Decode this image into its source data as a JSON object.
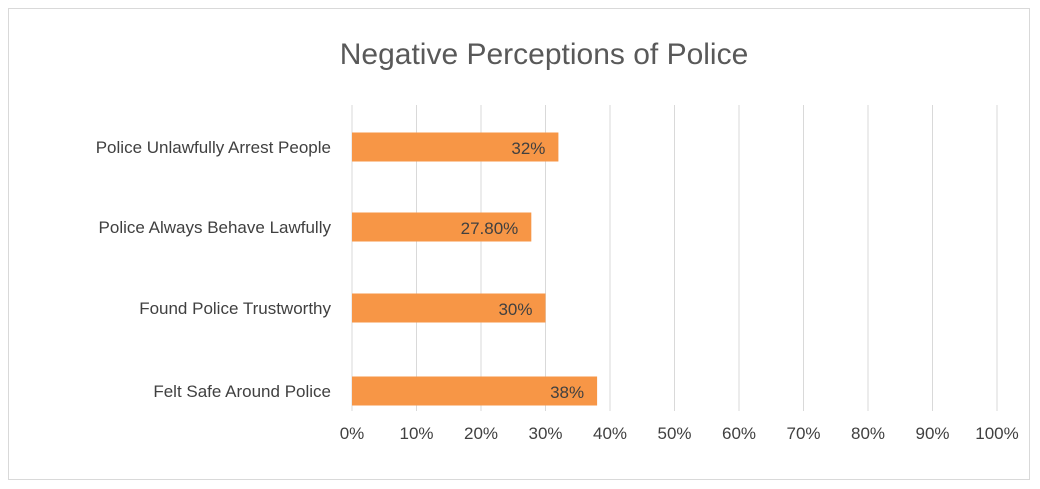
{
  "chart_data": {
    "type": "bar",
    "orientation": "horizontal",
    "title": "Negative Perceptions of Police",
    "categories": [
      "Police Unlawfully Arrest People",
      "Police Always Behave Lawfully",
      "Found Police Trustworthy",
      "Felt Safe Around Police"
    ],
    "values": [
      32,
      27.8,
      30,
      38
    ],
    "data_labels": [
      "32%",
      "27.80%",
      "30%",
      "38%"
    ],
    "xlim": [
      0,
      100
    ],
    "x_ticks": [
      0,
      10,
      20,
      30,
      40,
      50,
      60,
      70,
      80,
      90,
      100
    ],
    "x_tick_labels": [
      "0%",
      "10%",
      "20%",
      "30%",
      "40%",
      "50%",
      "60%",
      "70%",
      "80%",
      "90%",
      "100%"
    ],
    "grid": true,
    "legend": "none",
    "bar_color": "#f79646",
    "grid_color": "#d9d9d9"
  }
}
